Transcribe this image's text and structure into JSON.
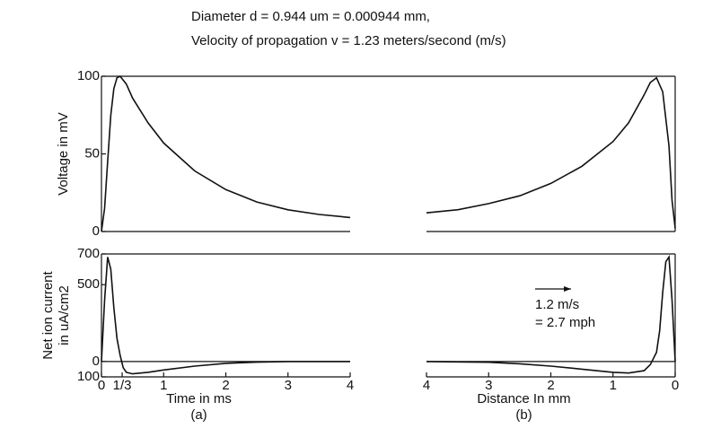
{
  "header": [
    "Diameter d = 0.944 um = 0.000944 mm,",
    "Velocity of propagation  v = 1.23 meters/second (m/s)"
  ],
  "annotation": [
    "1.2 m/s",
    "= 2.7 mph"
  ],
  "chart_data": [
    {
      "type": "line",
      "ylabel": [
        "Voltage in mV"
      ],
      "xlim": [
        0,
        4
      ],
      "ylim": [
        0,
        100
      ],
      "yticks": [
        0,
        50,
        100
      ],
      "x": [
        0,
        0.05,
        0.1,
        0.15,
        0.2,
        0.25,
        0.3,
        0.4,
        0.5,
        0.75,
        1,
        1.5,
        2,
        2.5,
        3,
        3.5,
        4
      ],
      "series": [
        {
          "color": "#111111",
          "values": [
            0,
            15,
            45,
            75,
            92,
            99,
            100,
            95,
            86,
            70,
            57,
            39,
            27,
            19,
            14,
            11,
            9
          ]
        }
      ]
    },
    {
      "type": "line",
      "xlim": [
        4,
        0
      ],
      "ylim": [
        0,
        100
      ],
      "x": [
        4,
        3.5,
        3,
        2.5,
        2,
        1.5,
        1,
        0.75,
        0.5,
        0.4,
        0.3,
        0.2,
        0.1,
        0.05,
        0
      ],
      "series": [
        {
          "color": "#111111",
          "values": [
            12,
            14,
            18,
            23,
            31,
            42,
            58,
            70,
            88,
            96,
            99,
            90,
            55,
            20,
            2
          ]
        }
      ]
    },
    {
      "type": "line",
      "ylabel": [
        "Net ion current",
        "in uA/cm2"
      ],
      "xlabel": "Time in ms",
      "caption": "(a)",
      "xlim": [
        0,
        4
      ],
      "xticks": [
        0,
        {
          "value": 0.333,
          "label": "1/3"
        },
        1,
        2,
        3,
        4
      ],
      "ylim": [
        -100,
        700
      ],
      "yticks": [
        {
          "value": -100,
          "label": "100"
        },
        0,
        500,
        700
      ],
      "zero_line": true,
      "x": [
        0,
        0.05,
        0.1,
        0.15,
        0.2,
        0.25,
        0.3,
        0.35,
        0.4,
        0.5,
        0.75,
        1,
        1.5,
        2,
        2.5,
        3,
        4
      ],
      "series": [
        {
          "color": "#111111",
          "values": [
            0,
            400,
            680,
            600,
            350,
            150,
            40,
            -40,
            -70,
            -80,
            -70,
            -55,
            -30,
            -12,
            -4,
            0,
            0
          ]
        }
      ]
    },
    {
      "type": "line",
      "xlabel": "Distance In mm",
      "caption": "(b)",
      "xlim": [
        4,
        0
      ],
      "xticks": [
        4,
        3,
        2,
        1,
        0
      ],
      "ylim": [
        -100,
        700
      ],
      "zero_line": true,
      "x": [
        4,
        3,
        2.5,
        2,
        1.5,
        1,
        0.75,
        0.5,
        0.4,
        0.3,
        0.25,
        0.2,
        0.15,
        0.1,
        0.05,
        0
      ],
      "series": [
        {
          "color": "#111111",
          "values": [
            0,
            -5,
            -15,
            -30,
            -50,
            -70,
            -75,
            -60,
            -20,
            60,
            200,
            450,
            650,
            680,
            400,
            0
          ]
        }
      ]
    }
  ]
}
